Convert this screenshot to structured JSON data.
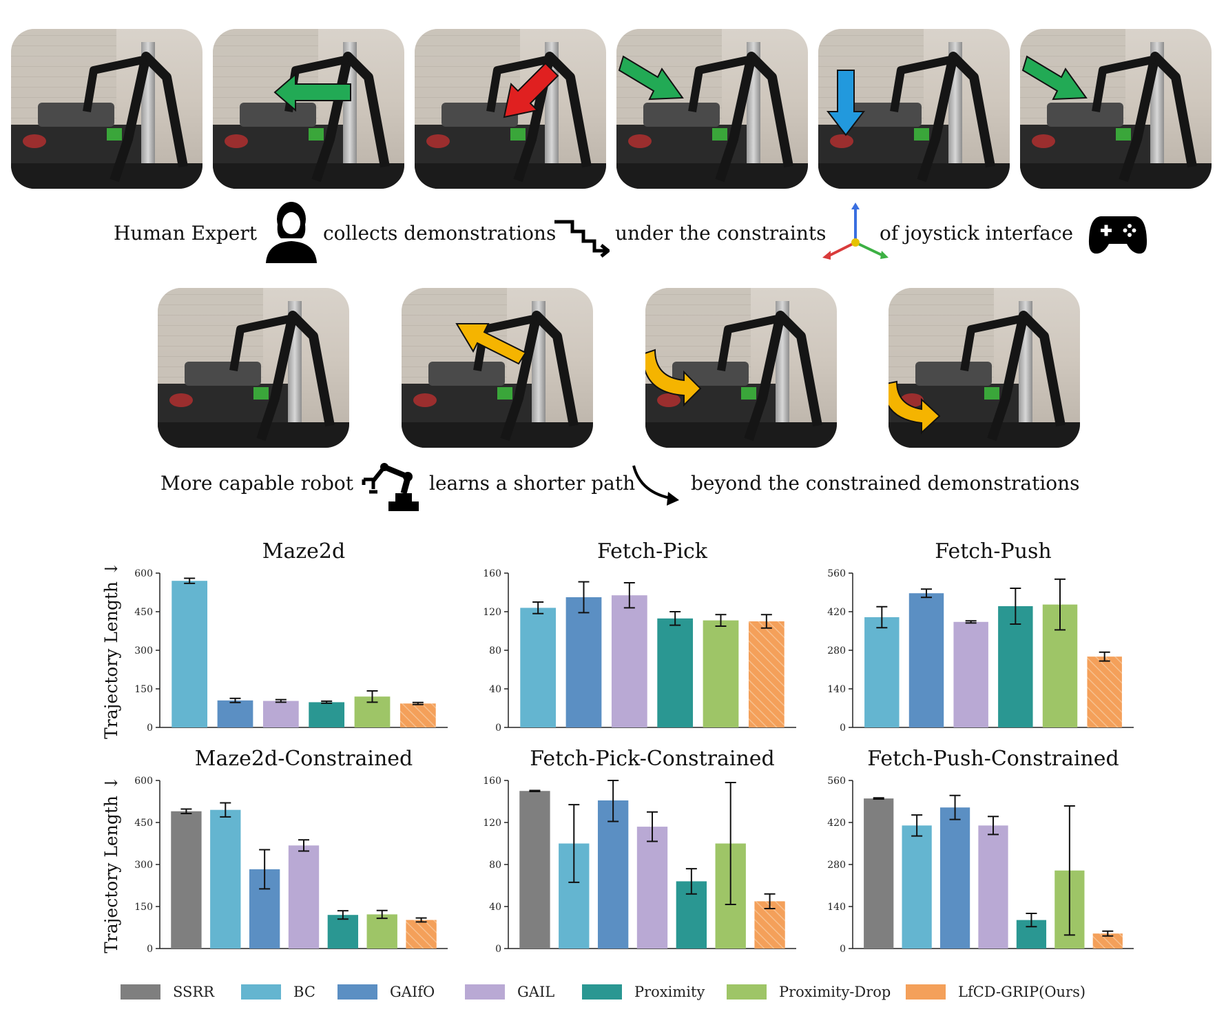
{
  "captions": {
    "row1": {
      "human_expert": "Human Expert",
      "collects": "collects demonstrations",
      "constraints": "under the constraints",
      "joystick": "of joystick interface"
    },
    "row2": {
      "robot": "More capable robot",
      "learns": "learns a shorter path",
      "beyond": "beyond the constrained demonstrations"
    }
  },
  "photos_top": [
    {
      "arrow": "none",
      "arrow_color": ""
    },
    {
      "arrow": "left",
      "arrow_color": "#22aa55"
    },
    {
      "arrow": "down-left",
      "arrow_color": "#e02020"
    },
    {
      "arrow": "down-right",
      "arrow_color": "#22aa55"
    },
    {
      "arrow": "down",
      "arrow_color": "#2299dd"
    },
    {
      "arrow": "down-right",
      "arrow_color": "#22aa55"
    }
  ],
  "photos_bottom": [
    {
      "arrow": "none",
      "arrow_color": ""
    },
    {
      "arrow": "up-left",
      "arrow_color": "#f5b400"
    },
    {
      "arrow": "curve-down",
      "arrow_color": "#f5b400"
    },
    {
      "arrow": "curve-right",
      "arrow_color": "#f5b400"
    }
  ],
  "icons": {
    "person": "person-icon",
    "zigzag": "zigzag-path-icon",
    "axes": "xyz-axes-icon",
    "gamepad": "gamepad-icon",
    "robot_arm": "robot-arm-icon",
    "curve": "curved-arrow-icon"
  },
  "y_axis_label": "Trajectory Length ↓",
  "legend": [
    {
      "name": "SSRR",
      "color": "#7f7f7f"
    },
    {
      "name": "BC",
      "color": "#64b5d0"
    },
    {
      "name": "GAIfO",
      "color": "#5b8fc3"
    },
    {
      "name": "GAIL",
      "color": "#b9a9d4"
    },
    {
      "name": "Proximity",
      "color": "#2a9792"
    },
    {
      "name": "Proximity-Drop",
      "color": "#9ec567"
    },
    {
      "name": "LfCD-GRIP(Ours)",
      "color": "#f4a05a"
    }
  ],
  "chart_data": [
    {
      "type": "bar",
      "title": "Maze2d",
      "ylabel": "Trajectory Length ↓",
      "ylim": [
        0,
        600
      ],
      "yticks": [
        0,
        150,
        300,
        450,
        600
      ],
      "series": [
        {
          "name": "BC",
          "value": 570,
          "err": 10
        },
        {
          "name": "GAIfO",
          "value": 105,
          "err": 8
        },
        {
          "name": "GAIL",
          "value": 103,
          "err": 5
        },
        {
          "name": "Proximity",
          "value": 98,
          "err": 4
        },
        {
          "name": "Proximity-Drop",
          "value": 120,
          "err": 22
        },
        {
          "name": "LfCD-GRIP(Ours)",
          "value": 93,
          "err": 4
        }
      ]
    },
    {
      "type": "bar",
      "title": "Fetch-Pick",
      "ylabel": "",
      "ylim": [
        0,
        160
      ],
      "yticks": [
        0,
        40,
        80,
        120,
        160
      ],
      "series": [
        {
          "name": "BC",
          "value": 124,
          "err": 6
        },
        {
          "name": "GAIfO",
          "value": 135,
          "err": 16
        },
        {
          "name": "GAIL",
          "value": 137,
          "err": 13
        },
        {
          "name": "Proximity",
          "value": 113,
          "err": 7
        },
        {
          "name": "Proximity-Drop",
          "value": 111,
          "err": 6
        },
        {
          "name": "LfCD-GRIP(Ours)",
          "value": 110,
          "err": 7
        }
      ]
    },
    {
      "type": "bar",
      "title": "Fetch-Push",
      "ylabel": "",
      "ylim": [
        0,
        560
      ],
      "yticks": [
        0,
        140,
        280,
        420,
        560
      ],
      "series": [
        {
          "name": "BC",
          "value": 400,
          "err": 38
        },
        {
          "name": "GAIfO",
          "value": 487,
          "err": 15
        },
        {
          "name": "GAIL",
          "value": 383,
          "err": 4
        },
        {
          "name": "Proximity",
          "value": 440,
          "err": 65
        },
        {
          "name": "Proximity-Drop",
          "value": 446,
          "err": 92
        },
        {
          "name": "LfCD-GRIP(Ours)",
          "value": 257,
          "err": 16
        }
      ]
    },
    {
      "type": "bar",
      "title": "Maze2d-Constrained",
      "ylabel": "Trajectory Length ↓",
      "ylim": [
        0,
        600
      ],
      "yticks": [
        0,
        150,
        300,
        450,
        600
      ],
      "series": [
        {
          "name": "SSRR",
          "value": 490,
          "err": 8
        },
        {
          "name": "BC",
          "value": 495,
          "err": 25
        },
        {
          "name": "GAIfO",
          "value": 283,
          "err": 70
        },
        {
          "name": "GAIL",
          "value": 368,
          "err": 20
        },
        {
          "name": "Proximity",
          "value": 120,
          "err": 15
        },
        {
          "name": "Proximity-Drop",
          "value": 122,
          "err": 14
        },
        {
          "name": "LfCD-GRIP(Ours)",
          "value": 102,
          "err": 7
        }
      ]
    },
    {
      "type": "bar",
      "title": "Fetch-Pick-Constrained",
      "ylabel": "",
      "ylim": [
        0,
        160
      ],
      "yticks": [
        0,
        40,
        80,
        120,
        160
      ],
      "series": [
        {
          "name": "SSRR",
          "value": 150,
          "err": 0.5
        },
        {
          "name": "BC",
          "value": 100,
          "err": 37
        },
        {
          "name": "GAIfO",
          "value": 141,
          "err": 20
        },
        {
          "name": "GAIL",
          "value": 116,
          "err": 14
        },
        {
          "name": "Proximity",
          "value": 64,
          "err": 12
        },
        {
          "name": "Proximity-Drop",
          "value": 100,
          "err": 58
        },
        {
          "name": "LfCD-GRIP(Ours)",
          "value": 45,
          "err": 7
        }
      ]
    },
    {
      "type": "bar",
      "title": "Fetch-Push-Constrained",
      "ylabel": "",
      "ylim": [
        0,
        560
      ],
      "yticks": [
        0,
        140,
        280,
        420,
        560
      ],
      "series": [
        {
          "name": "SSRR",
          "value": 500,
          "err": 2
        },
        {
          "name": "BC",
          "value": 410,
          "err": 35
        },
        {
          "name": "GAIfO",
          "value": 470,
          "err": 40
        },
        {
          "name": "GAIL",
          "value": 410,
          "err": 30
        },
        {
          "name": "Proximity",
          "value": 95,
          "err": 22
        },
        {
          "name": "Proximity-Drop",
          "value": 260,
          "err": 215
        },
        {
          "name": "LfCD-GRIP(Ours)",
          "value": 50,
          "err": 8
        }
      ]
    }
  ]
}
